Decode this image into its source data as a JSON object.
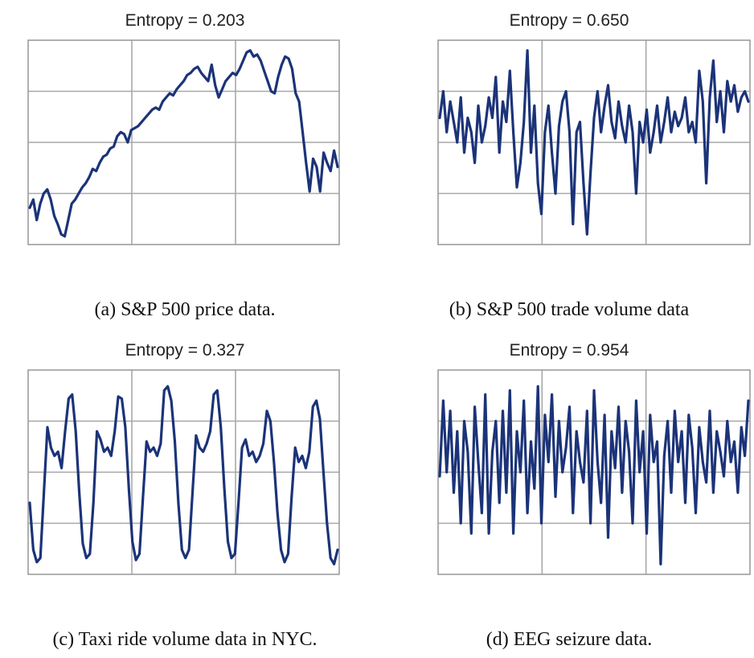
{
  "colors": {
    "line": "#1b3378",
    "grid": "#a8a8a8",
    "frame": "#9c9c9c"
  },
  "chart_data": [
    {
      "type": "line",
      "title": "Entropy = 0.203",
      "caption": "(a) S&P 500 price data.",
      "grid": true,
      "ylim": [
        0,
        1
      ],
      "series": [
        {
          "values": [
            0.18,
            0.22,
            0.12,
            0.2,
            0.25,
            0.27,
            0.22,
            0.14,
            0.1,
            0.05,
            0.04,
            0.12,
            0.2,
            0.22,
            0.25,
            0.28,
            0.3,
            0.33,
            0.37,
            0.36,
            0.4,
            0.43,
            0.44,
            0.47,
            0.48,
            0.53,
            0.55,
            0.54,
            0.5,
            0.56,
            0.57,
            0.58,
            0.6,
            0.62,
            0.64,
            0.66,
            0.67,
            0.66,
            0.7,
            0.72,
            0.74,
            0.73,
            0.76,
            0.78,
            0.8,
            0.83,
            0.84,
            0.86,
            0.87,
            0.84,
            0.82,
            0.8,
            0.88,
            0.78,
            0.72,
            0.76,
            0.8,
            0.82,
            0.84,
            0.83,
            0.86,
            0.9,
            0.94,
            0.95,
            0.92,
            0.93,
            0.9,
            0.85,
            0.8,
            0.75,
            0.74,
            0.82,
            0.88,
            0.92,
            0.91,
            0.86,
            0.74,
            0.7,
            0.55,
            0.4,
            0.26,
            0.42,
            0.38,
            0.26,
            0.45,
            0.4,
            0.36,
            0.46,
            0.38
          ]
        }
      ]
    },
    {
      "type": "line",
      "title": "Entropy = 0.650",
      "caption": "(b) S&P 500 trade volume data",
      "grid": true,
      "ylim": [
        0,
        1
      ],
      "series": [
        {
          "values": [
            0.62,
            0.75,
            0.55,
            0.7,
            0.6,
            0.5,
            0.72,
            0.45,
            0.62,
            0.55,
            0.4,
            0.68,
            0.5,
            0.58,
            0.72,
            0.62,
            0.82,
            0.45,
            0.7,
            0.6,
            0.85,
            0.55,
            0.28,
            0.4,
            0.6,
            0.95,
            0.45,
            0.68,
            0.3,
            0.15,
            0.55,
            0.68,
            0.45,
            0.25,
            0.58,
            0.7,
            0.75,
            0.55,
            0.1,
            0.55,
            0.6,
            0.3,
            0.05,
            0.35,
            0.62,
            0.75,
            0.55,
            0.68,
            0.78,
            0.6,
            0.52,
            0.7,
            0.58,
            0.5,
            0.68,
            0.55,
            0.25,
            0.6,
            0.5,
            0.66,
            0.45,
            0.55,
            0.68,
            0.5,
            0.6,
            0.72,
            0.55,
            0.65,
            0.58,
            0.62,
            0.72,
            0.55,
            0.6,
            0.5,
            0.85,
            0.7,
            0.3,
            0.72,
            0.9,
            0.6,
            0.75,
            0.55,
            0.8,
            0.7,
            0.78,
            0.65,
            0.72,
            0.75,
            0.7
          ]
        }
      ]
    },
    {
      "type": "line",
      "title": "Entropy = 0.327",
      "caption": "(c) Taxi ride volume data in NYC.",
      "grid": true,
      "ylim": [
        0,
        1
      ],
      "series": [
        {
          "values": [
            0.35,
            0.12,
            0.06,
            0.08,
            0.4,
            0.72,
            0.62,
            0.58,
            0.6,
            0.52,
            0.7,
            0.86,
            0.88,
            0.7,
            0.4,
            0.15,
            0.08,
            0.1,
            0.35,
            0.7,
            0.66,
            0.6,
            0.62,
            0.58,
            0.7,
            0.87,
            0.86,
            0.72,
            0.42,
            0.16,
            0.07,
            0.1,
            0.38,
            0.65,
            0.6,
            0.62,
            0.58,
            0.64,
            0.9,
            0.92,
            0.85,
            0.65,
            0.35,
            0.12,
            0.08,
            0.12,
            0.4,
            0.68,
            0.62,
            0.6,
            0.64,
            0.7,
            0.88,
            0.9,
            0.72,
            0.42,
            0.16,
            0.08,
            0.1,
            0.35,
            0.62,
            0.66,
            0.58,
            0.6,
            0.55,
            0.58,
            0.64,
            0.8,
            0.75,
            0.55,
            0.3,
            0.12,
            0.06,
            0.1,
            0.38,
            0.62,
            0.55,
            0.58,
            0.52,
            0.6,
            0.82,
            0.85,
            0.76,
            0.5,
            0.25,
            0.08,
            0.05,
            0.12
          ]
        }
      ]
    },
    {
      "type": "line",
      "title": "Entropy = 0.954",
      "caption": "(d) EEG seizure data.",
      "grid": true,
      "ylim": [
        0,
        1
      ],
      "series": [
        {
          "values": [
            0.48,
            0.85,
            0.5,
            0.8,
            0.4,
            0.7,
            0.25,
            0.75,
            0.6,
            0.2,
            0.82,
            0.55,
            0.3,
            0.88,
            0.2,
            0.6,
            0.75,
            0.35,
            0.8,
            0.4,
            0.9,
            0.2,
            0.7,
            0.5,
            0.85,
            0.3,
            0.65,
            0.42,
            0.92,
            0.25,
            0.78,
            0.55,
            0.88,
            0.38,
            0.75,
            0.5,
            0.62,
            0.82,
            0.3,
            0.7,
            0.55,
            0.45,
            0.8,
            0.25,
            0.9,
            0.55,
            0.35,
            0.78,
            0.18,
            0.7,
            0.52,
            0.82,
            0.4,
            0.75,
            0.6,
            0.25,
            0.85,
            0.5,
            0.7,
            0.2,
            0.78,
            0.55,
            0.65,
            0.05,
            0.58,
            0.75,
            0.4,
            0.8,
            0.55,
            0.7,
            0.35,
            0.78,
            0.62,
            0.3,
            0.72,
            0.55,
            0.45,
            0.8,
            0.4,
            0.7,
            0.6,
            0.48,
            0.75,
            0.55,
            0.65,
            0.4,
            0.72,
            0.58,
            0.85
          ]
        }
      ]
    }
  ]
}
